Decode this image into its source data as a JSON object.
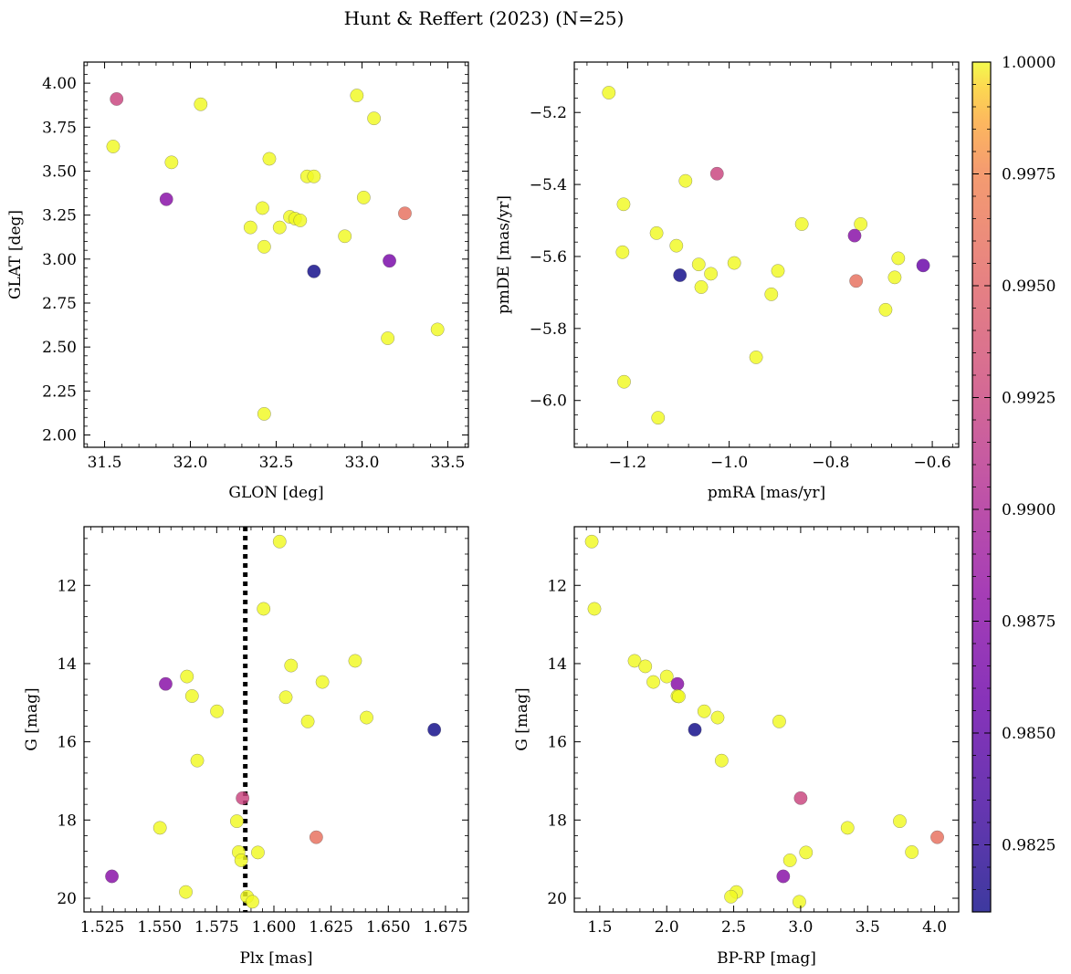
{
  "figure": {
    "title": "Hunt & Reffert (2023) (N=25)"
  },
  "colorbar": {
    "colormap": "plasma",
    "vmin": 0.981,
    "vmax": 1.0,
    "ticks": [
      0.9825,
      0.985,
      0.9875,
      0.99,
      0.9925,
      0.995,
      0.9975,
      1.0
    ],
    "tick_labels": [
      "0.9825",
      "0.9850",
      "0.9875",
      "0.9900",
      "0.9925",
      "0.9950",
      "0.9975",
      "1.0000"
    ]
  },
  "chart_data": [
    {
      "type": "scatter",
      "id": "glon-glat",
      "xlabel": "GLON [deg]",
      "ylabel": "GLAT [deg]",
      "xlim": [
        31.38,
        33.62
      ],
      "ylim": [
        1.93,
        4.12
      ],
      "invert_y": false,
      "xticks": [
        31.5,
        32.0,
        32.5,
        33.0,
        33.5
      ],
      "xtick_labels": [
        "31.5",
        "32.0",
        "32.5",
        "33.0",
        "33.5"
      ],
      "yticks": [
        2.0,
        2.25,
        2.5,
        2.75,
        3.0,
        3.25,
        3.5,
        3.75,
        4.0
      ],
      "ytick_labels": [
        "2.00",
        "2.25",
        "2.50",
        "2.75",
        "3.00",
        "3.25",
        "3.50",
        "3.75",
        "4.00"
      ],
      "points": [
        {
          "x": 31.57,
          "y": 3.91,
          "c": 0.9925
        },
        {
          "x": 31.55,
          "y": 3.64,
          "c": 1.0
        },
        {
          "x": 32.06,
          "y": 3.88,
          "c": 1.0
        },
        {
          "x": 31.89,
          "y": 3.55,
          "c": 1.0
        },
        {
          "x": 31.86,
          "y": 3.34,
          "c": 0.9875
        },
        {
          "x": 32.97,
          "y": 3.93,
          "c": 1.0
        },
        {
          "x": 33.07,
          "y": 3.8,
          "c": 1.0
        },
        {
          "x": 32.46,
          "y": 3.57,
          "c": 1.0
        },
        {
          "x": 32.68,
          "y": 3.47,
          "c": 1.0
        },
        {
          "x": 32.72,
          "y": 3.47,
          "c": 1.0
        },
        {
          "x": 33.01,
          "y": 3.35,
          "c": 1.0
        },
        {
          "x": 32.42,
          "y": 3.29,
          "c": 1.0
        },
        {
          "x": 33.25,
          "y": 3.26,
          "c": 0.996
        },
        {
          "x": 32.58,
          "y": 3.24,
          "c": 1.0
        },
        {
          "x": 32.61,
          "y": 3.23,
          "c": 1.0
        },
        {
          "x": 32.64,
          "y": 3.22,
          "c": 1.0
        },
        {
          "x": 32.35,
          "y": 3.18,
          "c": 1.0
        },
        {
          "x": 32.52,
          "y": 3.18,
          "c": 1.0
        },
        {
          "x": 32.9,
          "y": 3.13,
          "c": 1.0
        },
        {
          "x": 32.43,
          "y": 3.07,
          "c": 1.0
        },
        {
          "x": 33.16,
          "y": 2.99,
          "c": 0.9865
        },
        {
          "x": 32.72,
          "y": 2.93,
          "c": 0.981
        },
        {
          "x": 33.44,
          "y": 2.6,
          "c": 1.0
        },
        {
          "x": 33.15,
          "y": 2.55,
          "c": 1.0
        },
        {
          "x": 32.43,
          "y": 2.12,
          "c": 1.0
        }
      ]
    },
    {
      "type": "scatter",
      "id": "pm",
      "xlabel": "pmRA [mas/yr]",
      "ylabel": "pmDE [mas/yr]",
      "xlim": [
        -1.305,
        -0.548
      ],
      "ylim": [
        -6.13,
        -5.06
      ],
      "invert_y": false,
      "xticks": [
        -1.2,
        -1.0,
        -0.8,
        -0.6
      ],
      "xtick_labels": [
        "−1.2",
        "−1.0",
        "−0.8",
        "−0.6"
      ],
      "yticks": [
        -6.0,
        -5.8,
        -5.6,
        -5.4,
        -5.2
      ],
      "ytick_labels": [
        "−6.0",
        "−5.8",
        "−5.6",
        "−5.4",
        "−5.2"
      ],
      "points": [
        {
          "x": -1.237,
          "y": -5.145,
          "c": 1.0
        },
        {
          "x": -1.024,
          "y": -5.37,
          "c": 0.9925
        },
        {
          "x": -1.086,
          "y": -5.39,
          "c": 1.0
        },
        {
          "x": -1.208,
          "y": -5.455,
          "c": 1.0
        },
        {
          "x": -0.857,
          "y": -5.51,
          "c": 1.0
        },
        {
          "x": -0.741,
          "y": -5.51,
          "c": 1.0
        },
        {
          "x": -1.143,
          "y": -5.535,
          "c": 1.0
        },
        {
          "x": -0.753,
          "y": -5.542,
          "c": 0.9875
        },
        {
          "x": -1.104,
          "y": -5.57,
          "c": 1.0
        },
        {
          "x": -1.21,
          "y": -5.588,
          "c": 1.0
        },
        {
          "x": -0.667,
          "y": -5.605,
          "c": 1.0
        },
        {
          "x": -0.99,
          "y": -5.618,
          "c": 1.0
        },
        {
          "x": -1.06,
          "y": -5.622,
          "c": 1.0
        },
        {
          "x": -0.618,
          "y": -5.625,
          "c": 0.9855
        },
        {
          "x": -0.904,
          "y": -5.64,
          "c": 1.0
        },
        {
          "x": -1.036,
          "y": -5.648,
          "c": 1.0
        },
        {
          "x": -1.097,
          "y": -5.652,
          "c": 0.981
        },
        {
          "x": -0.674,
          "y": -5.658,
          "c": 1.0
        },
        {
          "x": -0.75,
          "y": -5.668,
          "c": 0.996
        },
        {
          "x": -1.055,
          "y": -5.685,
          "c": 1.0
        },
        {
          "x": -0.917,
          "y": -5.705,
          "c": 1.0
        },
        {
          "x": -0.692,
          "y": -5.748,
          "c": 1.0
        },
        {
          "x": -0.947,
          "y": -5.88,
          "c": 1.0
        },
        {
          "x": -1.207,
          "y": -5.948,
          "c": 1.0
        },
        {
          "x": -1.14,
          "y": -6.048,
          "c": 1.0
        }
      ]
    },
    {
      "type": "scatter",
      "id": "plx-g",
      "xlabel": "Plx [mas]",
      "ylabel": "G [mag]",
      "xlim": [
        1.517,
        1.685
      ],
      "ylim": [
        10.5,
        20.35
      ],
      "invert_y": true,
      "vline_x": 1.5875,
      "xticks": [
        1.525,
        1.55,
        1.575,
        1.6,
        1.625,
        1.65,
        1.675
      ],
      "xtick_labels": [
        "1.525",
        "1.550",
        "1.575",
        "1.600",
        "1.625",
        "1.650",
        "1.675"
      ],
      "yticks": [
        12,
        14,
        16,
        18,
        20
      ],
      "ytick_labels": [
        "12",
        "14",
        "16",
        "18",
        "20"
      ],
      "points": [
        {
          "x": 1.6025,
          "y": 10.88,
          "c": 1.0
        },
        {
          "x": 1.5955,
          "y": 12.6,
          "c": 1.0
        },
        {
          "x": 1.6355,
          "y": 13.93,
          "c": 1.0
        },
        {
          "x": 1.6075,
          "y": 14.05,
          "c": 1.0
        },
        {
          "x": 1.562,
          "y": 14.33,
          "c": 1.0
        },
        {
          "x": 1.6212,
          "y": 14.47,
          "c": 1.0
        },
        {
          "x": 1.5527,
          "y": 14.52,
          "c": 0.9875
        },
        {
          "x": 1.5642,
          "y": 14.83,
          "c": 1.0
        },
        {
          "x": 1.6052,
          "y": 14.86,
          "c": 1.0
        },
        {
          "x": 1.5751,
          "y": 15.22,
          "c": 1.0
        },
        {
          "x": 1.6405,
          "y": 15.38,
          "c": 1.0
        },
        {
          "x": 1.6148,
          "y": 15.48,
          "c": 1.0
        },
        {
          "x": 1.6701,
          "y": 15.69,
          "c": 0.981
        },
        {
          "x": 1.5665,
          "y": 16.48,
          "c": 1.0
        },
        {
          "x": 1.5863,
          "y": 17.44,
          "c": 0.9925
        },
        {
          "x": 1.5838,
          "y": 18.03,
          "c": 1.0
        },
        {
          "x": 1.5502,
          "y": 18.2,
          "c": 1.0
        },
        {
          "x": 1.6185,
          "y": 18.44,
          "c": 0.996
        },
        {
          "x": 1.5846,
          "y": 18.82,
          "c": 1.0
        },
        {
          "x": 1.593,
          "y": 18.83,
          "c": 1.0
        },
        {
          "x": 1.5857,
          "y": 19.03,
          "c": 1.0
        },
        {
          "x": 1.5292,
          "y": 19.44,
          "c": 0.9875
        },
        {
          "x": 1.5615,
          "y": 19.84,
          "c": 1.0
        },
        {
          "x": 1.5883,
          "y": 19.96,
          "c": 1.0
        },
        {
          "x": 1.5906,
          "y": 20.09,
          "c": 1.0
        }
      ]
    },
    {
      "type": "scatter",
      "id": "cmd",
      "xlabel": "BP-RP [mag]",
      "ylabel": "G [mag]",
      "xlim": [
        1.31,
        4.18
      ],
      "ylim": [
        10.5,
        20.35
      ],
      "invert_y": true,
      "xticks": [
        1.5,
        2.0,
        2.5,
        3.0,
        3.5,
        4.0
      ],
      "xtick_labels": [
        "1.5",
        "2.0",
        "2.5",
        "3.0",
        "3.5",
        "4.0"
      ],
      "yticks": [
        12,
        14,
        16,
        18,
        20
      ],
      "ytick_labels": [
        "12",
        "14",
        "16",
        "18",
        "20"
      ],
      "points": [
        {
          "x": 1.44,
          "y": 10.88,
          "c": 1.0
        },
        {
          "x": 1.46,
          "y": 12.6,
          "c": 1.0
        },
        {
          "x": 1.76,
          "y": 13.93,
          "c": 1.0
        },
        {
          "x": 1.84,
          "y": 14.07,
          "c": 1.0
        },
        {
          "x": 2.0,
          "y": 14.33,
          "c": 1.0
        },
        {
          "x": 1.9,
          "y": 14.47,
          "c": 1.0
        },
        {
          "x": 2.08,
          "y": 14.52,
          "c": 0.9875
        },
        {
          "x": 2.08,
          "y": 14.83,
          "c": 1.0
        },
        {
          "x": 2.09,
          "y": 14.84,
          "c": 1.0
        },
        {
          "x": 2.28,
          "y": 15.22,
          "c": 1.0
        },
        {
          "x": 2.38,
          "y": 15.38,
          "c": 1.0
        },
        {
          "x": 2.84,
          "y": 15.48,
          "c": 1.0
        },
        {
          "x": 2.21,
          "y": 15.69,
          "c": 0.981
        },
        {
          "x": 2.41,
          "y": 16.48,
          "c": 1.0
        },
        {
          "x": 3.0,
          "y": 17.44,
          "c": 0.9925
        },
        {
          "x": 3.74,
          "y": 18.03,
          "c": 1.0
        },
        {
          "x": 3.35,
          "y": 18.2,
          "c": 1.0
        },
        {
          "x": 4.02,
          "y": 18.44,
          "c": 0.996
        },
        {
          "x": 3.83,
          "y": 18.82,
          "c": 1.0
        },
        {
          "x": 3.04,
          "y": 18.83,
          "c": 1.0
        },
        {
          "x": 2.92,
          "y": 19.03,
          "c": 1.0
        },
        {
          "x": 2.87,
          "y": 19.44,
          "c": 0.9875
        },
        {
          "x": 2.52,
          "y": 19.84,
          "c": 1.0
        },
        {
          "x": 2.48,
          "y": 19.96,
          "c": 1.0
        },
        {
          "x": 2.99,
          "y": 20.09,
          "c": 1.0
        }
      ]
    }
  ]
}
